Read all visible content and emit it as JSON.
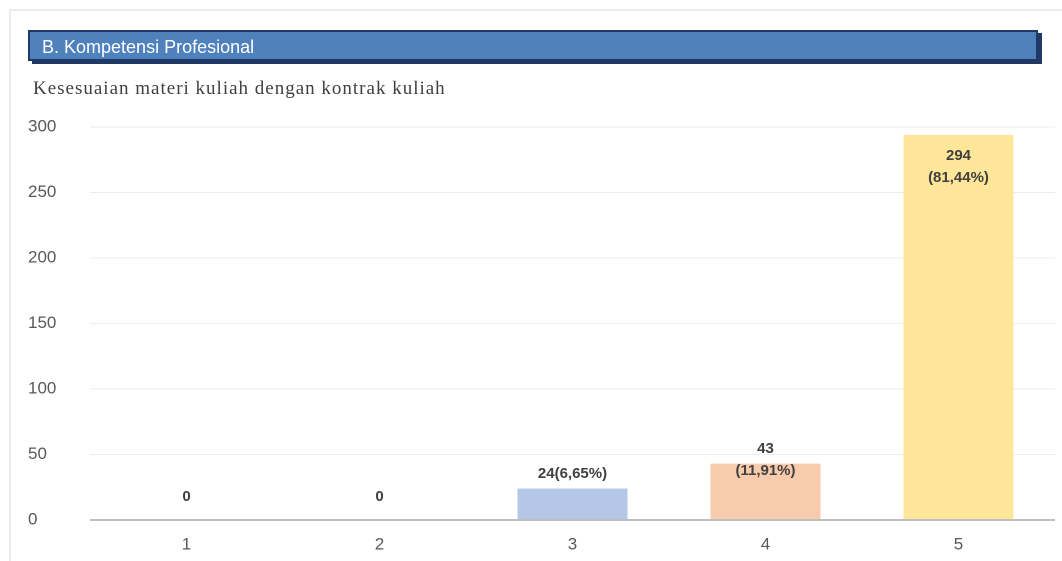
{
  "header": {
    "title": "B. Kompetensi Profesional"
  },
  "chart_data": {
    "type": "bar",
    "title": "Kesesuaian materi kuliah dengan kontrak kuliah",
    "categories": [
      "1",
      "2",
      "3",
      "4",
      "5"
    ],
    "values": [
      0,
      0,
      24,
      43,
      294
    ],
    "value_labels": [
      "0",
      "0",
      "24(6,65%)",
      "43\n(11,91%)",
      "294\n(81,44%)"
    ],
    "colors": [
      "#c9c9c9",
      "#c9c9c9",
      "#b4c7e7",
      "#f8cbad",
      "#ffe699"
    ],
    "ylim": [
      0,
      300
    ],
    "yticks": [
      0,
      50,
      100,
      150,
      200,
      250,
      300
    ],
    "grid": true
  }
}
